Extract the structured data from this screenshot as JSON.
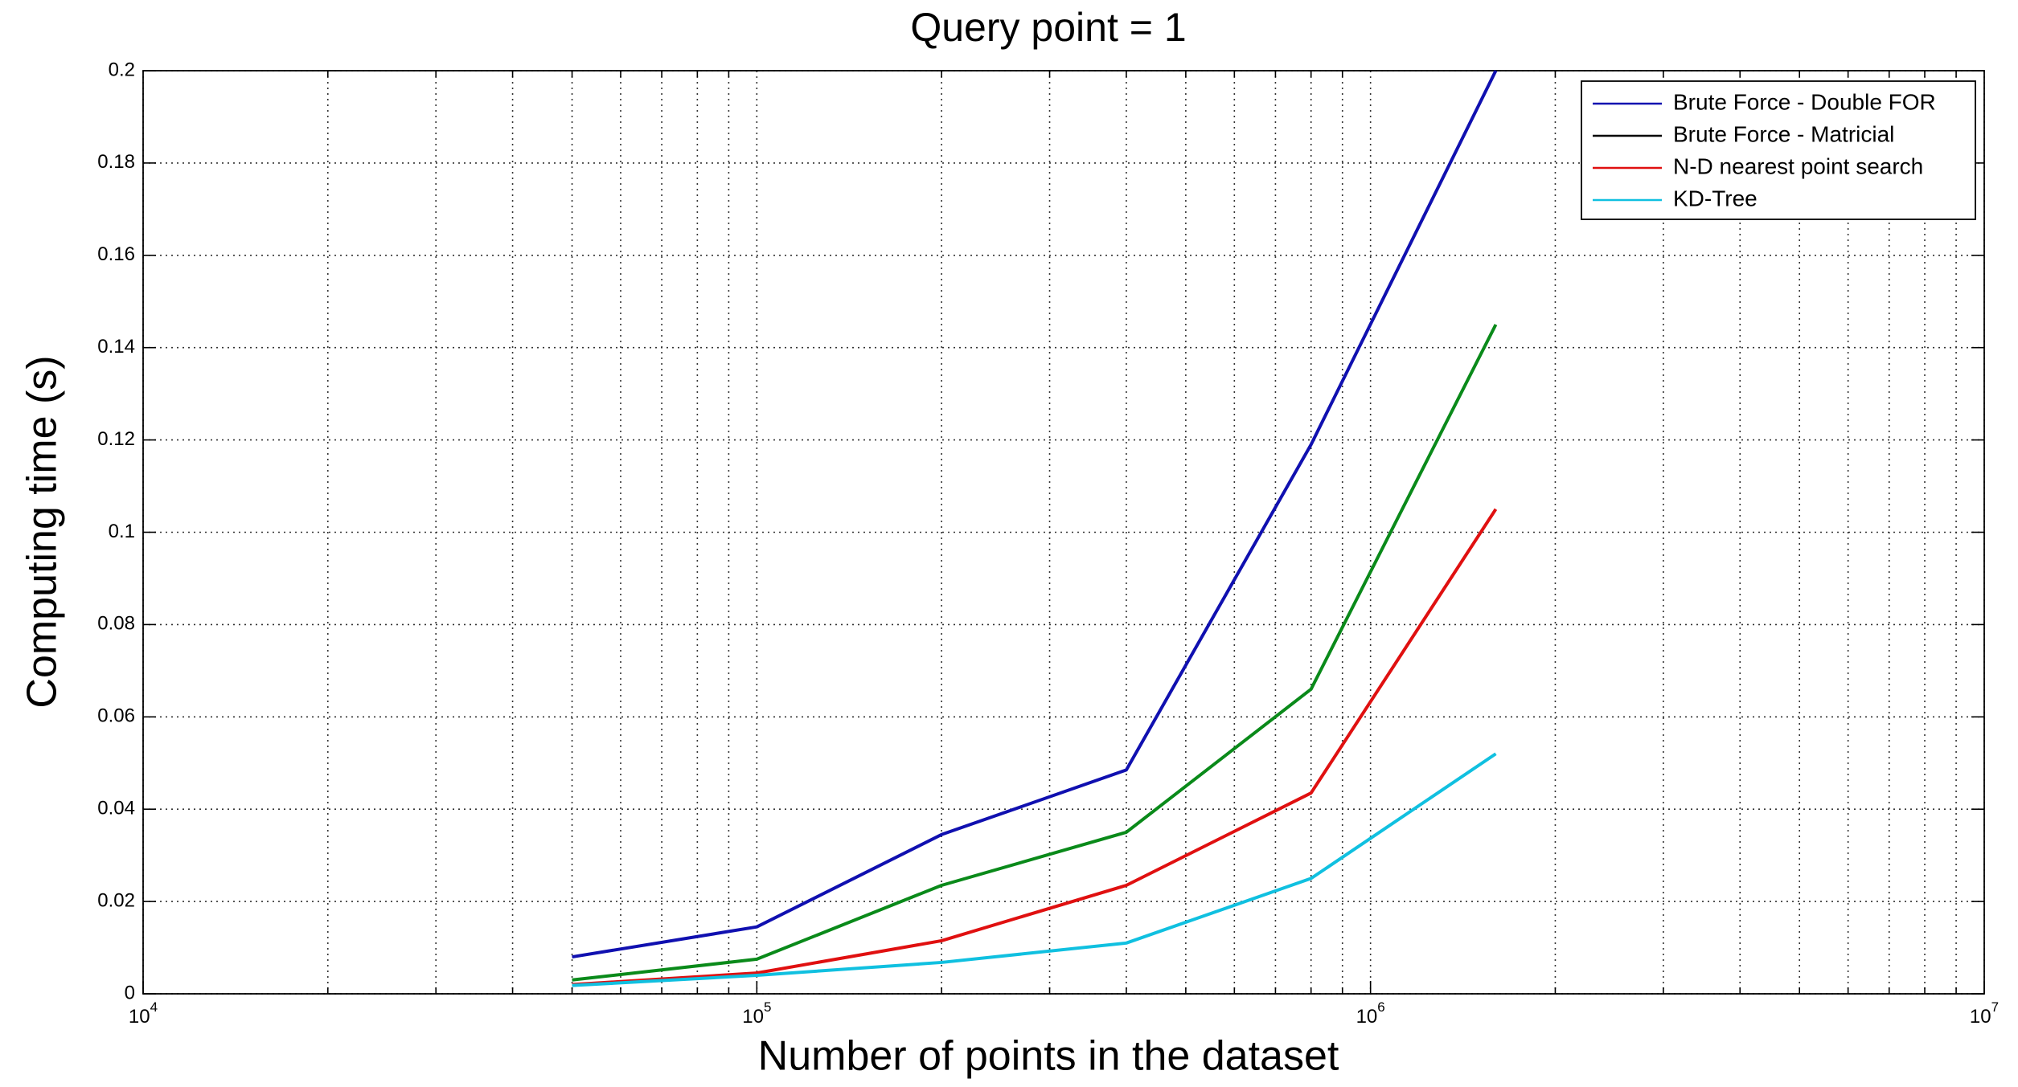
{
  "chart_data": {
    "type": "line",
    "title": "Query point = 1",
    "xlabel": "Number of points in the dataset",
    "ylabel": "Computing time (s)",
    "x": [
      50000,
      100000,
      200000,
      400000,
      800000,
      1600000
    ],
    "series": [
      {
        "name": "Brute Force - Double FOR",
        "color": "#1010b0",
        "legend_color": "#1010b0",
        "values": [
          0.008,
          0.0145,
          0.0345,
          0.0485,
          0.119,
          0.2
        ]
      },
      {
        "name": "Brute Force - Matricial",
        "color": "#0a8a1a",
        "legend_color": "#000000",
        "values": [
          0.003,
          0.0075,
          0.0235,
          0.035,
          0.066,
          0.145
        ]
      },
      {
        "name": "N-D nearest point search",
        "color": "#e01010",
        "legend_color": "#e01010",
        "values": [
          0.002,
          0.0045,
          0.0115,
          0.0235,
          0.0435,
          0.105
        ]
      },
      {
        "name": "KD-Tree",
        "color": "#10c0e0",
        "legend_color": "#10c0e0",
        "values": [
          0.0018,
          0.004,
          0.0068,
          0.011,
          0.025,
          0.052
        ]
      }
    ],
    "xscale": "log",
    "xlim": [
      10000,
      10000000
    ],
    "xticks": [
      {
        "value": 10000,
        "label": "10",
        "exponent": "4"
      },
      {
        "value": 100000,
        "label": "10",
        "exponent": "5"
      },
      {
        "value": 1000000,
        "label": "10",
        "exponent": "6"
      },
      {
        "value": 10000000,
        "label": "10",
        "exponent": "7"
      }
    ],
    "ylim": [
      0,
      0.2
    ],
    "yticks": [
      0,
      0.02,
      0.04,
      0.06,
      0.08,
      0.1,
      0.12,
      0.14,
      0.16,
      0.18,
      0.2
    ],
    "grid": true,
    "minor_grid": true,
    "legend": "upper right"
  }
}
